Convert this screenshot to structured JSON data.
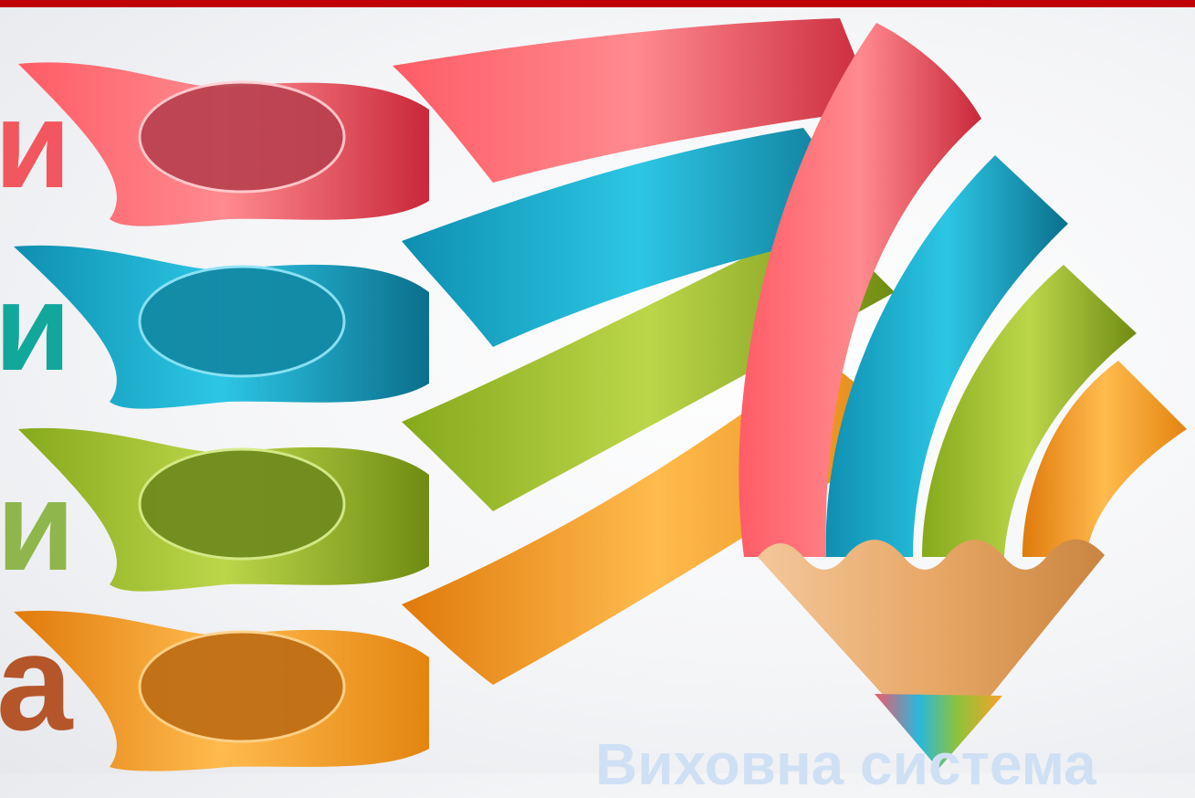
{
  "slide": {
    "letters": [
      {
        "text": "и",
        "color": "#f2565f"
      },
      {
        "text": "и",
        "color": "#12a79b"
      },
      {
        "text": "и",
        "color": "#8fb64c"
      },
      {
        "text": "а",
        "color": "#b5562a"
      }
    ],
    "bottom_title": "Виховна система"
  },
  "colors": {
    "top_bar": "#c00000",
    "red": "#e8414e",
    "blue": "#1ab4d2",
    "green": "#9bbd2a",
    "orange": "#f39a1f",
    "pencil_wood": "#e9b07a"
  },
  "icons": [
    "pencil-ribbon-graphic"
  ]
}
